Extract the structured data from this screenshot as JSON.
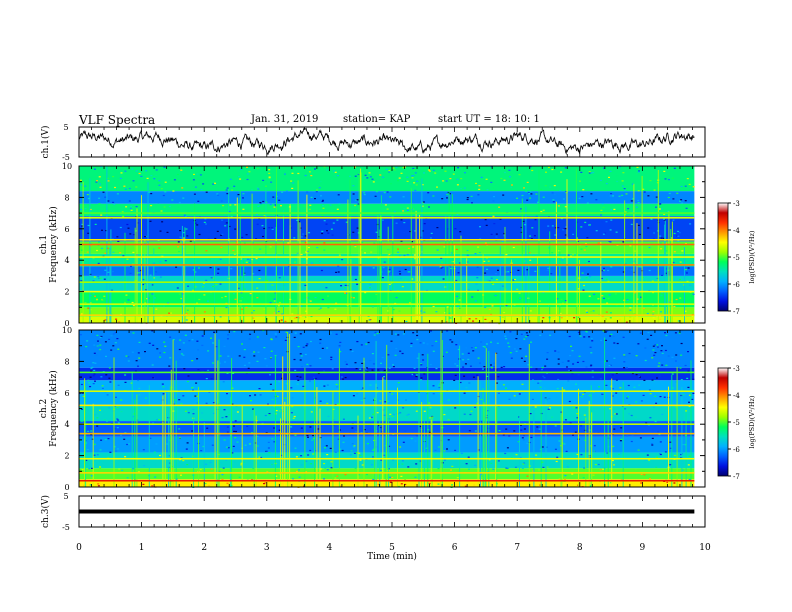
{
  "header": {
    "title": "VLF Spectra",
    "date": "Jan. 31, 2019",
    "station": "station= KAP",
    "start_ut": "start UT =  18: 10: 1"
  },
  "colorbar": {
    "label": "log(PSD)(V²/Hz)",
    "ticks": [
      "-3",
      "-4",
      "-5",
      "-6",
      "-7"
    ],
    "colors": [
      "#ffffff",
      "#c00000",
      "#ff3000",
      "#ff9a00",
      "#ffff00",
      "#9dff00",
      "#00ff5a",
      "#00e0c0",
      "#00b0ff",
      "#0060ff",
      "#0010e0",
      "#000070"
    ]
  },
  "chart_data": [
    {
      "type": "line",
      "name": "ch1-waveform",
      "ylabel": "ch.1(V)",
      "ylim": [
        -5,
        5
      ],
      "yticks": [
        "5",
        "-5"
      ],
      "xlim": [
        0,
        10
      ],
      "color": "#000000"
    },
    {
      "type": "heatmap",
      "name": "ch1-spectrogram",
      "ylabel_top": "ch.1",
      "ylabel": "Frequency (kHz)",
      "xlim": [
        0,
        10
      ],
      "ylim": [
        0,
        10
      ],
      "yticks": [
        "0",
        "2",
        "4",
        "6",
        "8",
        "10"
      ],
      "data_end_min": 9.83,
      "value_range": [
        -7,
        -3
      ],
      "bands": [
        {
          "f": [
            0.0,
            0.4
          ],
          "v": -4.6
        },
        {
          "f": [
            0.4,
            1.0
          ],
          "v": -4.9
        },
        {
          "f": [
            1.0,
            2.0
          ],
          "v": -5.2
        },
        {
          "f": [
            2.0,
            3.0
          ],
          "v": -5.6
        },
        {
          "f": [
            3.0,
            3.6
          ],
          "v": -6.2
        },
        {
          "f": [
            3.6,
            4.4
          ],
          "v": -5.4
        },
        {
          "f": [
            4.4,
            5.2
          ],
          "v": -5.0
        },
        {
          "f": [
            5.2,
            6.8
          ],
          "v": -6.4
        },
        {
          "f": [
            6.8,
            7.6
          ],
          "v": -5.3
        },
        {
          "f": [
            7.6,
            8.4
          ],
          "v": -6.1
        },
        {
          "f": [
            8.4,
            10.0
          ],
          "v": -5.3
        }
      ],
      "lines": [
        {
          "f": 0.5,
          "v": -4.3
        },
        {
          "f": 1.2,
          "v": -4.6
        },
        {
          "f": 2.0,
          "v": -4.5
        },
        {
          "f": 2.6,
          "v": -4.8
        },
        {
          "f": 3.7,
          "v": -4.0
        },
        {
          "f": 4.2,
          "v": -4.5
        },
        {
          "f": 5.0,
          "v": -3.9
        },
        {
          "f": 5.3,
          "v": -4.4
        },
        {
          "f": 6.7,
          "v": -4.6
        },
        {
          "f": 7.0,
          "v": -5.0
        }
      ]
    },
    {
      "type": "heatmap",
      "name": "ch2-spectrogram",
      "ylabel_top": "ch.2",
      "ylabel": "Frequency (kHz)",
      "xlim": [
        0,
        10
      ],
      "ylim": [
        0,
        10
      ],
      "yticks": [
        "0",
        "2",
        "4",
        "6",
        "8",
        "10"
      ],
      "data_end_min": 9.83,
      "value_range": [
        -7,
        -3
      ],
      "bands": [
        {
          "f": [
            0.0,
            0.5
          ],
          "v": -4.4
        },
        {
          "f": [
            0.5,
            1.2
          ],
          "v": -5.0
        },
        {
          "f": [
            1.2,
            2.2
          ],
          "v": -5.6
        },
        {
          "f": [
            2.2,
            3.2
          ],
          "v": -6.0
        },
        {
          "f": [
            3.2,
            4.2
          ],
          "v": -6.3
        },
        {
          "f": [
            4.2,
            5.2
          ],
          "v": -5.6
        },
        {
          "f": [
            5.2,
            6.8
          ],
          "v": -5.9
        },
        {
          "f": [
            6.8,
            7.6
          ],
          "v": -6.5
        },
        {
          "f": [
            7.6,
            10.0
          ],
          "v": -6.1
        }
      ],
      "lines": [
        {
          "f": 0.4,
          "v": -3.6
        },
        {
          "f": 0.9,
          "v": -4.3
        },
        {
          "f": 1.8,
          "v": -4.5
        },
        {
          "f": 3.4,
          "v": -4.2
        },
        {
          "f": 4.0,
          "v": -4.7
        },
        {
          "f": 5.2,
          "v": -4.4
        },
        {
          "f": 6.1,
          "v": -4.6
        },
        {
          "f": 7.3,
          "v": -5.0
        }
      ]
    },
    {
      "type": "line",
      "name": "ch3-waveform",
      "ylabel": "ch.3(V)",
      "ylim": [
        -5,
        5
      ],
      "yticks": [
        "5",
        "-5"
      ],
      "xlim": [
        0,
        10
      ],
      "constant_value": 0,
      "xlabel": "Time (min)",
      "xticks": [
        "0",
        "1",
        "2",
        "3",
        "4",
        "5",
        "6",
        "7",
        "8",
        "9",
        "10"
      ],
      "color": "#000000"
    }
  ]
}
